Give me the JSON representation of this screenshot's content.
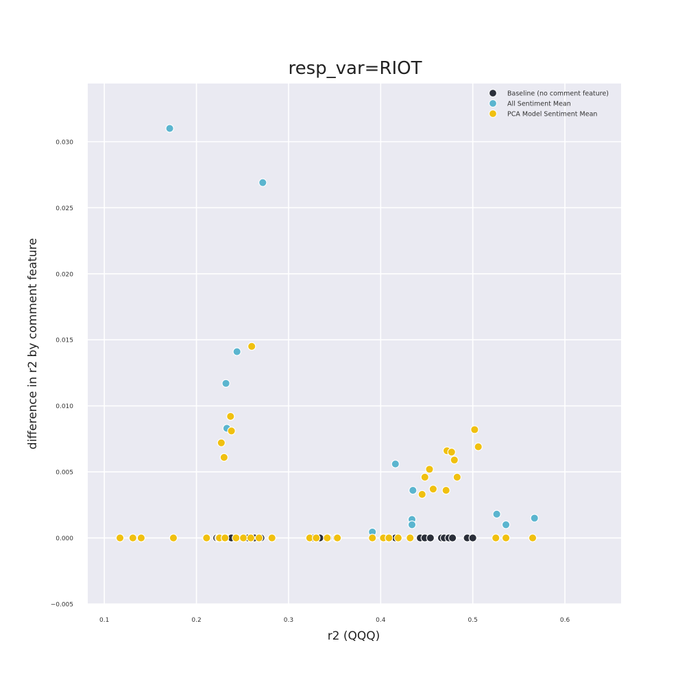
{
  "chart_data": {
    "type": "scatter",
    "title": "resp_var=RIOT",
    "xlabel": "r2 (QQQ)",
    "ylabel": "difference in r2 by comment feature",
    "xlim": [
      0.082,
      0.661
    ],
    "ylim": [
      -0.005,
      0.0344
    ],
    "xticks": [
      0.1,
      0.2,
      0.3,
      0.4,
      0.5,
      0.6
    ],
    "xtick_labels": [
      "0.1",
      "0.2",
      "0.3",
      "0.4",
      "0.5",
      "0.6"
    ],
    "yticks": [
      -0.005,
      0.0,
      0.005,
      0.01,
      0.015,
      0.02,
      0.025,
      0.03
    ],
    "ytick_labels": [
      "−0.005",
      "0.000",
      "0.005",
      "0.010",
      "0.015",
      "0.020",
      "0.025",
      "0.030"
    ],
    "grid": true,
    "background_color": "#eaeaf2",
    "legend_position": "top-right",
    "series": [
      {
        "name": "Baseline (no comment feature)",
        "color": "#2b2f3a",
        "points": [
          [
            0.222,
            0.0
          ],
          [
            0.224,
            0.0
          ],
          [
            0.229,
            0.0
          ],
          [
            0.232,
            0.0
          ],
          [
            0.238,
            0.0
          ],
          [
            0.256,
            0.0
          ],
          [
            0.263,
            0.0
          ],
          [
            0.27,
            0.0
          ],
          [
            0.326,
            0.0
          ],
          [
            0.334,
            0.0
          ],
          [
            0.343,
            0.0
          ],
          [
            0.352,
            0.0
          ],
          [
            0.407,
            0.0
          ],
          [
            0.416,
            0.0
          ],
          [
            0.443,
            0.0
          ],
          [
            0.448,
            0.0
          ],
          [
            0.454,
            0.0
          ],
          [
            0.466,
            0.0
          ],
          [
            0.469,
            0.0
          ],
          [
            0.474,
            0.0
          ],
          [
            0.478,
            0.0
          ],
          [
            0.494,
            0.0
          ],
          [
            0.5,
            0.0
          ]
        ]
      },
      {
        "name": "All Sentiment Mean",
        "color": "#5bb5cf",
        "points": [
          [
            0.171,
            0.031
          ],
          [
            0.272,
            0.0269
          ],
          [
            0.244,
            0.0141
          ],
          [
            0.232,
            0.0117
          ],
          [
            0.233,
            0.0083
          ],
          [
            0.416,
            0.0056
          ],
          [
            0.435,
            0.0036
          ],
          [
            0.434,
            0.0014
          ],
          [
            0.434,
            0.001
          ],
          [
            0.391,
            0.00045
          ],
          [
            0.526,
            0.0018
          ],
          [
            0.536,
            0.001
          ],
          [
            0.567,
            0.0015
          ]
        ]
      },
      {
        "name": "PCA Model Sentiment Mean",
        "color": "#f0c010",
        "points": [
          [
            0.117,
            0.0
          ],
          [
            0.131,
            0.0
          ],
          [
            0.14,
            0.0
          ],
          [
            0.175,
            0.0
          ],
          [
            0.211,
            0.0
          ],
          [
            0.225,
            0.0
          ],
          [
            0.231,
            0.0
          ],
          [
            0.243,
            0.0
          ],
          [
            0.251,
            0.0
          ],
          [
            0.259,
            0.0
          ],
          [
            0.268,
            0.0
          ],
          [
            0.282,
            0.0
          ],
          [
            0.323,
            0.0
          ],
          [
            0.33,
            0.0
          ],
          [
            0.342,
            0.0
          ],
          [
            0.353,
            0.0
          ],
          [
            0.391,
            0.0
          ],
          [
            0.403,
            0.0
          ],
          [
            0.409,
            0.0
          ],
          [
            0.419,
            0.0
          ],
          [
            0.432,
            0.0
          ],
          [
            0.525,
            0.0
          ],
          [
            0.536,
            0.0
          ],
          [
            0.565,
            0.0
          ],
          [
            0.26,
            0.0145
          ],
          [
            0.237,
            0.0092
          ],
          [
            0.238,
            0.0081
          ],
          [
            0.227,
            0.0072
          ],
          [
            0.23,
            0.0061
          ],
          [
            0.502,
            0.0082
          ],
          [
            0.506,
            0.0069
          ],
          [
            0.472,
            0.0066
          ],
          [
            0.477,
            0.0065
          ],
          [
            0.48,
            0.0059
          ],
          [
            0.453,
            0.0052
          ],
          [
            0.448,
            0.0046
          ],
          [
            0.483,
            0.0046
          ],
          [
            0.445,
            0.0033
          ],
          [
            0.457,
            0.0037
          ],
          [
            0.471,
            0.0036
          ]
        ]
      }
    ]
  }
}
